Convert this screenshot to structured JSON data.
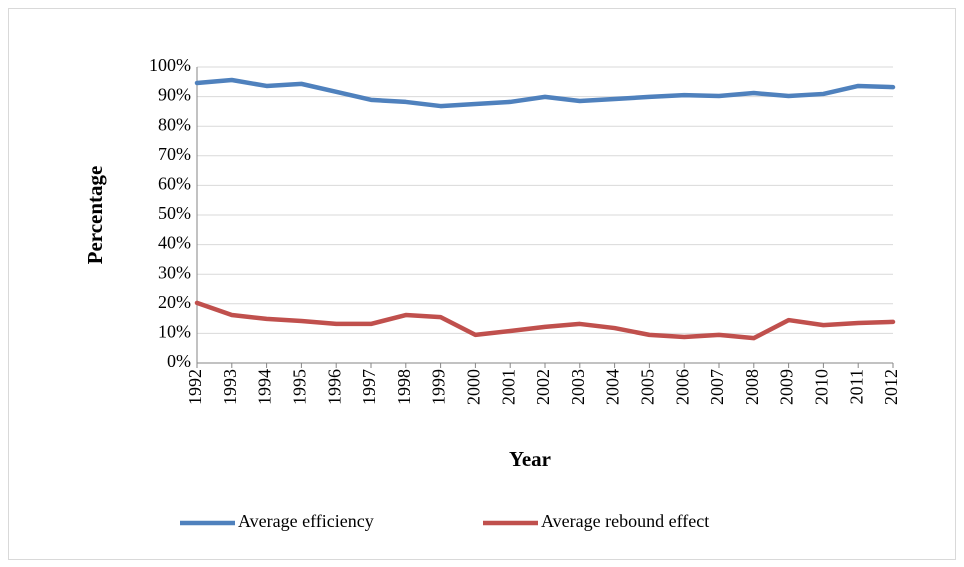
{
  "chart_data": {
    "type": "line",
    "x_label": "Year",
    "y_label": "Percentage",
    "categories": [
      "1992",
      "1993",
      "1994",
      "1995",
      "1996",
      "1997",
      "1998",
      "1999",
      "2000",
      "2001",
      "2002",
      "2003",
      "2004",
      "2005",
      "2006",
      "2007",
      "2008",
      "2009",
      "2010",
      "2011",
      "2012"
    ],
    "series": [
      {
        "name": "Average efficiency",
        "color": "#4f81bd",
        "values": [
          94.6,
          95.6,
          93.6,
          94.3,
          91.6,
          88.9,
          88.2,
          86.8,
          87.5,
          88.2,
          89.9,
          88.5,
          89.2,
          89.9,
          90.5,
          90.2,
          91.2,
          90.2,
          90.9,
          93.6,
          93.2
        ]
      },
      {
        "name": "Average rebound effect",
        "color": "#c0504d",
        "values": [
          20.3,
          16.2,
          14.9,
          14.2,
          13.2,
          13.2,
          16.2,
          15.5,
          9.5,
          10.8,
          12.2,
          13.2,
          11.8,
          9.5,
          8.8,
          9.5,
          8.4,
          14.5,
          12.8,
          13.5,
          13.9
        ]
      }
    ],
    "ylim": [
      0,
      100
    ],
    "yticks": [
      {
        "value": 0,
        "label": "0%"
      },
      {
        "value": 10,
        "label": "10%"
      },
      {
        "value": 20,
        "label": "20%"
      },
      {
        "value": 30,
        "label": "30%"
      },
      {
        "value": 40,
        "label": "40%"
      },
      {
        "value": 50,
        "label": "50%"
      },
      {
        "value": 60,
        "label": "60%"
      },
      {
        "value": 70,
        "label": "70%"
      },
      {
        "value": 80,
        "label": "80%"
      },
      {
        "value": 90,
        "label": "90%"
      },
      {
        "value": 100,
        "label": "100%"
      }
    ],
    "grid": true,
    "legend": "bottom"
  }
}
